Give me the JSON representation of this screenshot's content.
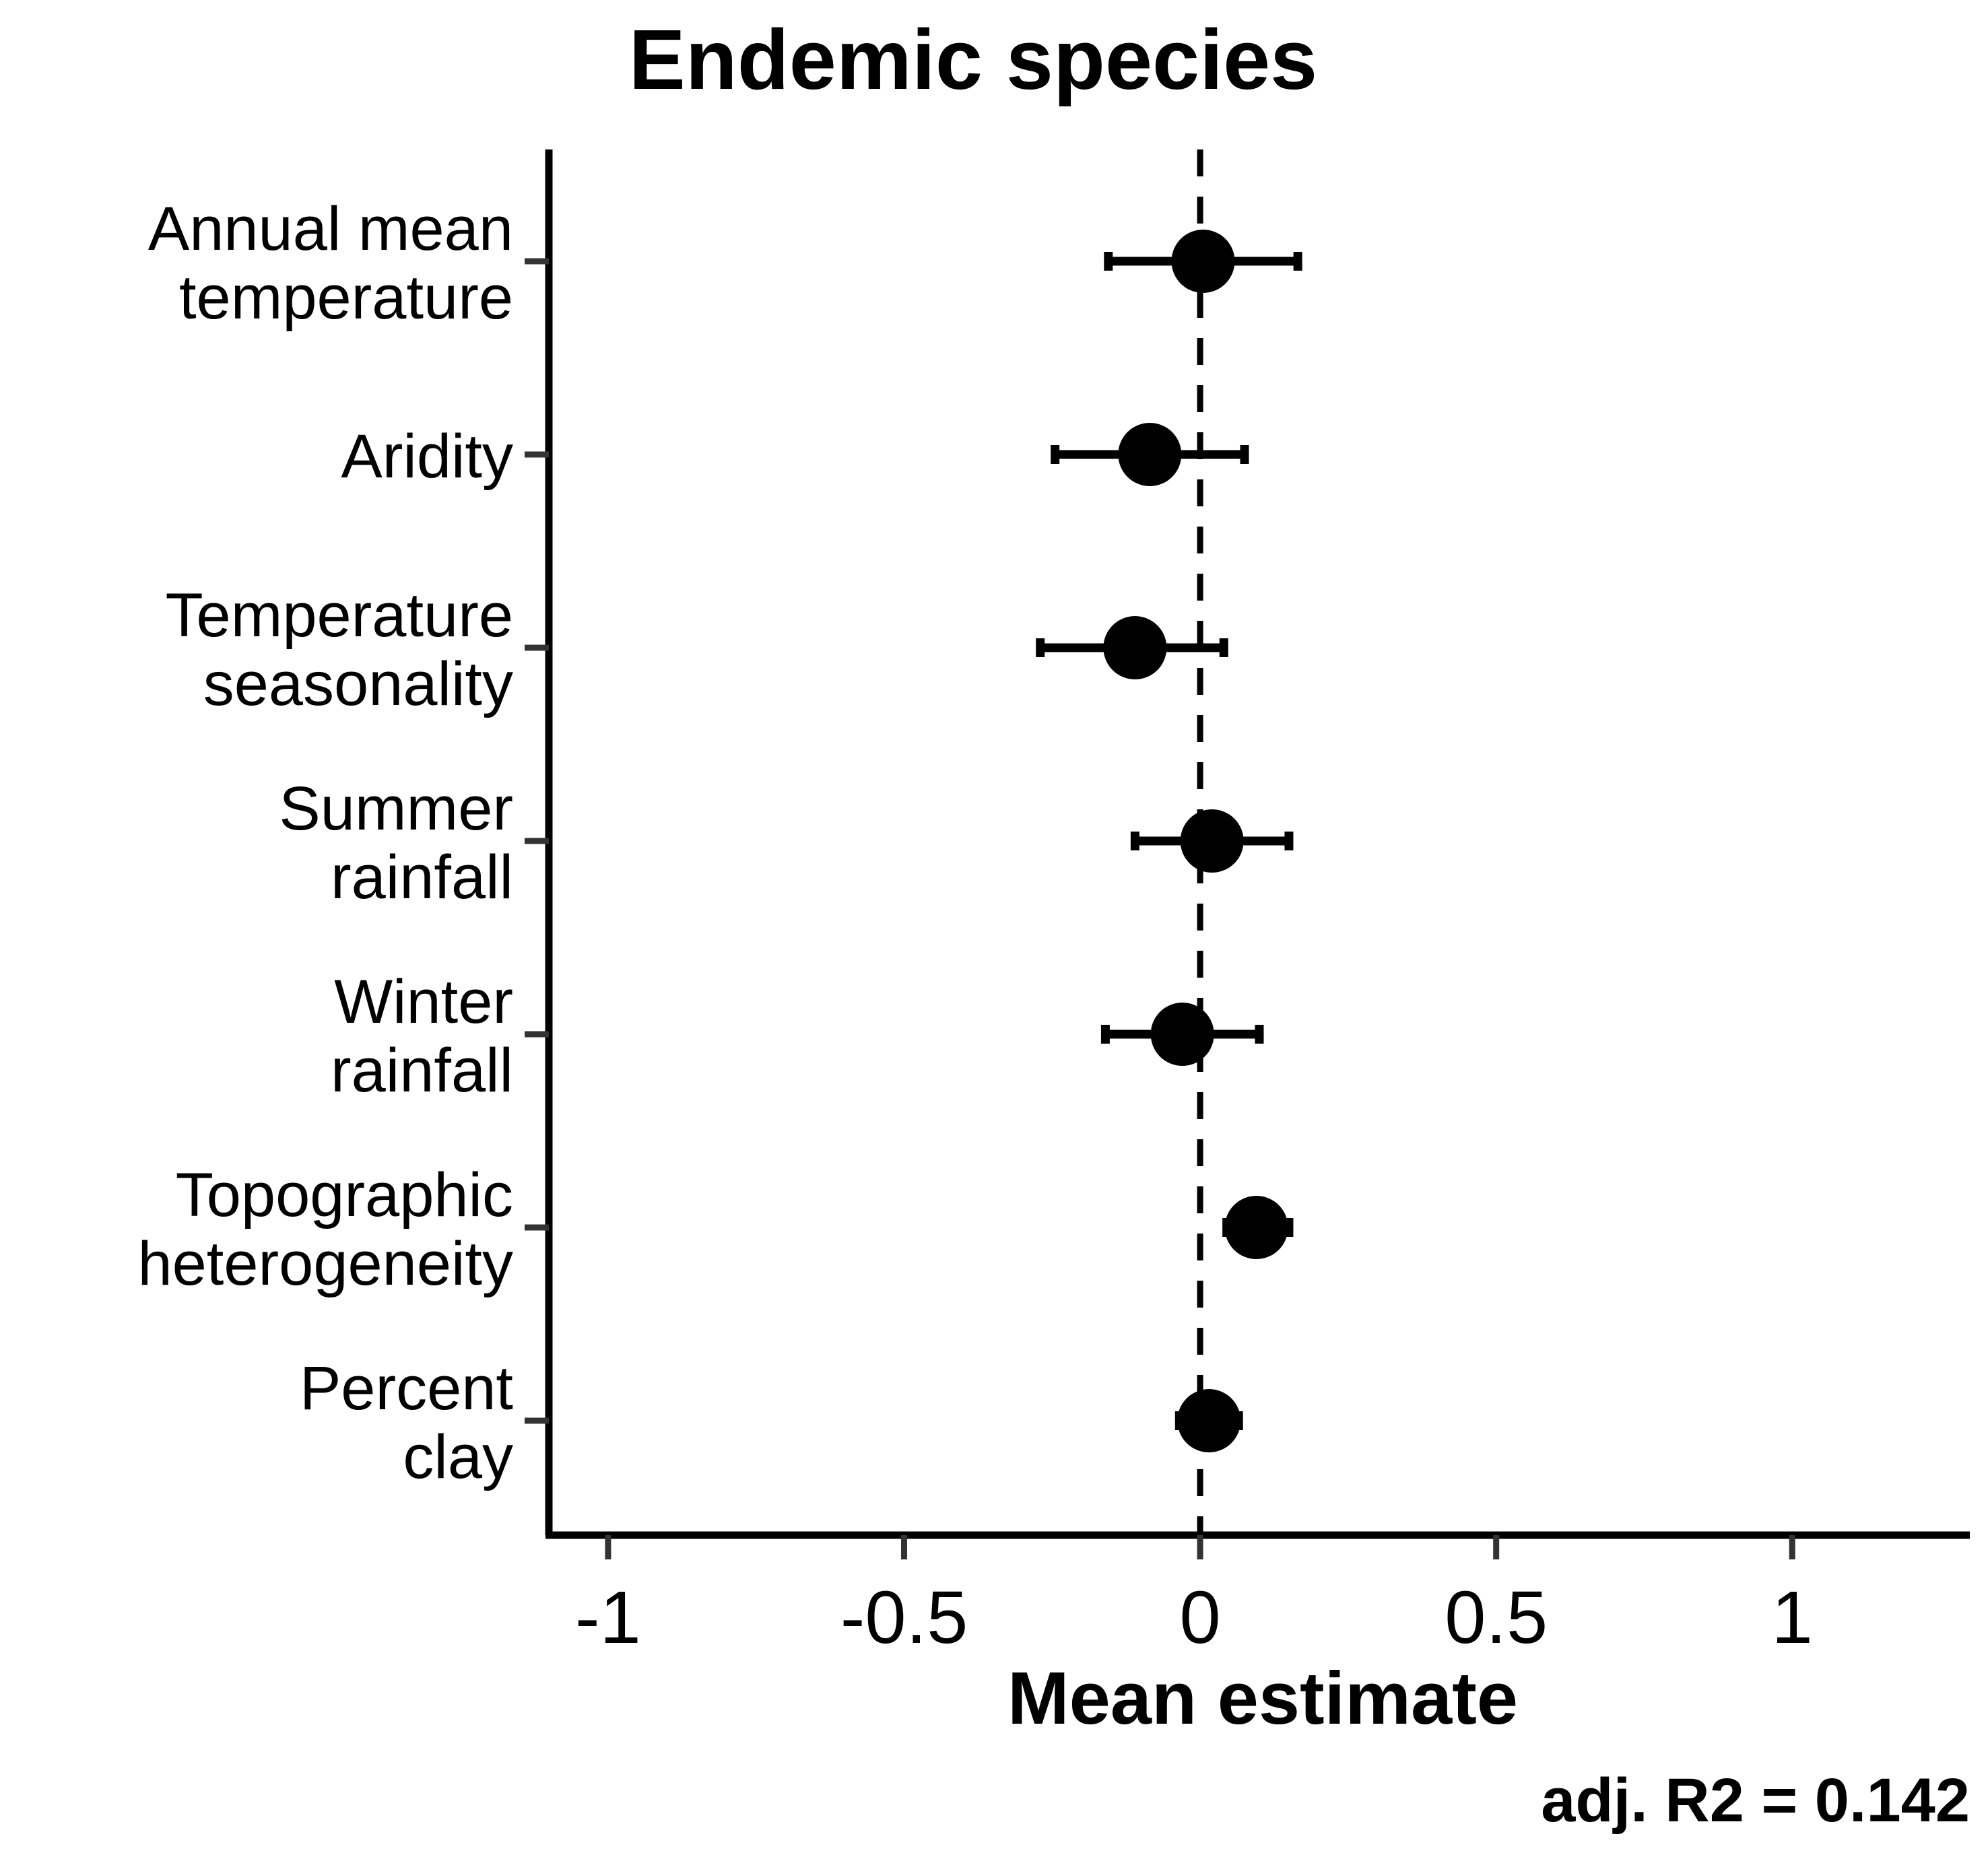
{
  "chart_data": {
    "type": "scatter",
    "title": "Endemic species",
    "xlabel": "Mean estimate",
    "ylabel": "",
    "xlim": [
      -1.1,
      1.3
    ],
    "xticks": [
      -1,
      -0.5,
      0,
      0.5,
      1
    ],
    "xtick_labels": [
      "-1",
      "-0.5",
      "0",
      "0.5",
      "1"
    ],
    "reference_line_x": 0,
    "annotation": "adj. R2 = 0.142",
    "colors": {
      "marks": "#000000",
      "axis": "#000000",
      "tick": "#333333"
    },
    "categories": [
      {
        "lines": [
          "Annual mean",
          "temperature"
        ],
        "estimate": 0.005,
        "lower": -0.155,
        "upper": 0.165
      },
      {
        "lines": [
          "Aridity"
        ],
        "estimate": -0.085,
        "lower": -0.245,
        "upper": 0.075
      },
      {
        "lines": [
          "Temperature",
          "seasonality"
        ],
        "estimate": -0.11,
        "lower": -0.27,
        "upper": 0.04
      },
      {
        "lines": [
          "Summer",
          "rainfall"
        ],
        "estimate": 0.02,
        "lower": -0.11,
        "upper": 0.15
      },
      {
        "lines": [
          "Winter",
          "rainfall"
        ],
        "estimate": -0.03,
        "lower": -0.16,
        "upper": 0.1
      },
      {
        "lines": [
          "Topographic",
          "heterogeneity"
        ],
        "estimate": 0.095,
        "lower": 0.045,
        "upper": 0.15
      },
      {
        "lines": [
          "Percent",
          "clay"
        ],
        "estimate": 0.015,
        "lower": -0.035,
        "upper": 0.065
      }
    ]
  }
}
